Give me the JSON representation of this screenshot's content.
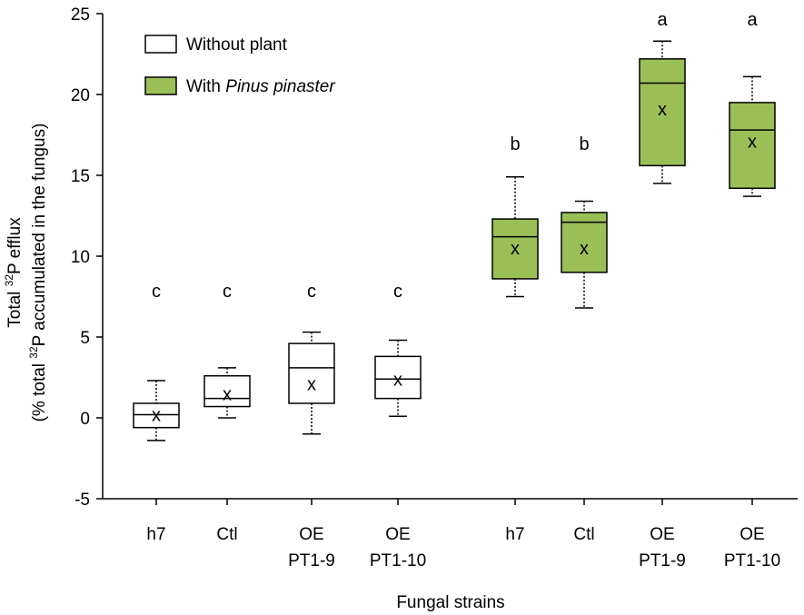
{
  "chart_data": {
    "type": "box",
    "ylabel_line1_prefix": "Total ",
    "ylabel_line1_sup": "32",
    "ylabel_line1_suffix": "P efflux",
    "ylabel_line2_prefix": "(% total ",
    "ylabel_line2_sup": "32",
    "ylabel_line2_suffix": "P accumulated in the fungus)",
    "xlabel": "Fungal strains",
    "ylim": [
      -5,
      25
    ],
    "yticks": [
      -5,
      0,
      5,
      10,
      15,
      20,
      25
    ],
    "legend": [
      {
        "label": "Without plant",
        "label_italic": "",
        "fill": "#ffffff"
      },
      {
        "label": "With ",
        "label_italic": "Pinus pinaster",
        "fill": "#9bbf57"
      }
    ],
    "boxes": [
      {
        "group": "Without plant",
        "line1": "h7",
        "line2": "",
        "min": -1.4,
        "q1": -0.6,
        "median": 0.2,
        "q3": 0.9,
        "max": 2.3,
        "mean": 0.2,
        "letter": "c",
        "fill": "#ffffff"
      },
      {
        "group": "Without plant",
        "line1": "Ctl",
        "line2": "",
        "min": 0.0,
        "q1": 0.7,
        "median": 1.2,
        "q3": 2.6,
        "max": 3.1,
        "mean": 1.5,
        "letter": "c",
        "fill": "#ffffff"
      },
      {
        "group": "Without plant",
        "line1": "OE",
        "line2": "PT1-9",
        "min": -1.0,
        "q1": 0.9,
        "median": 3.1,
        "q3": 4.6,
        "max": 5.3,
        "mean": 2.1,
        "letter": "c",
        "fill": "#ffffff"
      },
      {
        "group": "Without plant",
        "line1": "OE",
        "line2": "PT1-10",
        "min": 0.1,
        "q1": 1.2,
        "median": 2.4,
        "q3": 3.8,
        "max": 4.8,
        "mean": 2.4,
        "letter": "c",
        "fill": "#ffffff"
      },
      {
        "group": "With Pinus pinaster",
        "line1": "h7",
        "line2": "",
        "min": 7.5,
        "q1": 8.6,
        "median": 11.2,
        "q3": 12.3,
        "max": 14.9,
        "mean": 10.5,
        "letter": "b",
        "fill": "#9bbf57"
      },
      {
        "group": "With Pinus pinaster",
        "line1": "Ctl",
        "line2": "",
        "min": 6.8,
        "q1": 9.0,
        "median": 12.1,
        "q3": 12.7,
        "max": 13.4,
        "mean": 10.5,
        "letter": "b",
        "fill": "#9bbf57"
      },
      {
        "group": "With Pinus pinaster",
        "line1": "OE",
        "line2": "PT1-9",
        "min": 14.5,
        "q1": 15.6,
        "median": 20.7,
        "q3": 22.2,
        "max": 23.3,
        "mean": 19.1,
        "letter": "a",
        "fill": "#9bbf57"
      },
      {
        "group": "With Pinus pinaster",
        "line1": "OE",
        "line2": "PT1-10",
        "min": 13.7,
        "q1": 14.2,
        "median": 17.8,
        "q3": 19.5,
        "max": 21.1,
        "mean": 17.1,
        "letter": "a",
        "fill": "#9bbf57"
      }
    ],
    "mean_marker": "x",
    "colors": {
      "green": "#9bbf57",
      "white": "#ffffff",
      "stroke": "#000000"
    }
  }
}
